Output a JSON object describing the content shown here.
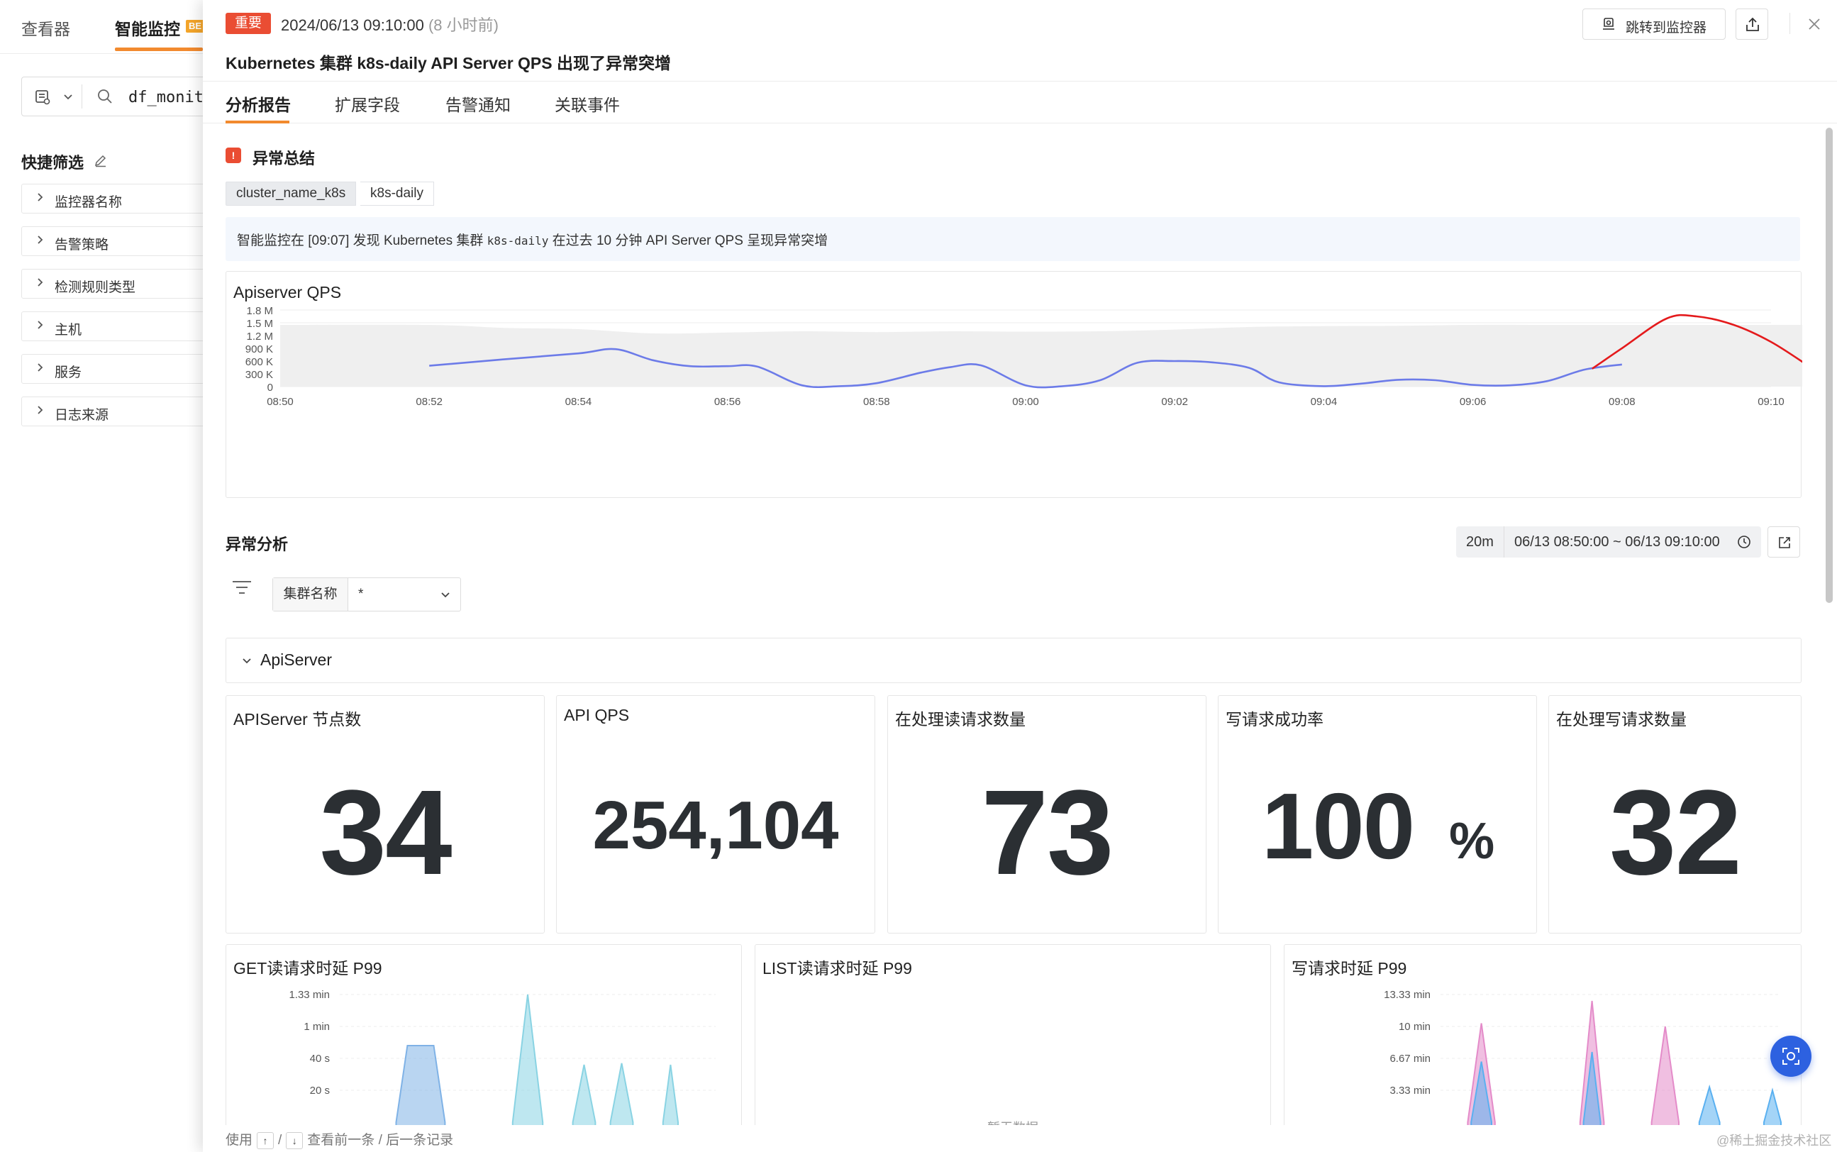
{
  "left_app": {
    "tabs": [
      "查看器",
      "智能监控"
    ],
    "beta_badge": "BE",
    "search_value": "df_monit",
    "quick_filter_title": "快捷筛选",
    "filters": [
      "监控器名称",
      "告警策略",
      "检测规则类型",
      "主机",
      "服务",
      "日志来源"
    ]
  },
  "header": {
    "severity": "重要",
    "time": "2024/06/13 09:10:00",
    "relative": "(8 小时前)",
    "title": "Kubernetes 集群 k8s-daily API Server QPS 出现了异常突增",
    "jump_label": "跳转到监控器",
    "severity_color": "#ea4d33"
  },
  "tabs": [
    "分析报告",
    "扩展字段",
    "告警通知",
    "关联事件"
  ],
  "summary": {
    "title": "异常总结",
    "tag_key": "cluster_name_k8s",
    "tag_value": "k8s-daily",
    "text_before": "智能监控在 [09:07] 发现 Kubernetes 集群 ",
    "text_code": "k8s-daily",
    "text_after": " 在过去 10 分钟 API Server QPS 呈现异常突增"
  },
  "chart_data": [
    {
      "type": "line",
      "title": "Apiserver QPS",
      "ytick_labels": [
        "0",
        "300 K",
        "600 K",
        "900 K",
        "1.2 M",
        "1.5 M",
        "1.8 M"
      ],
      "yticks": [
        0,
        300000,
        600000,
        900000,
        1200000,
        1500000,
        1800000
      ],
      "xtick_labels": [
        "08:50",
        "08:52",
        "08:54",
        "08:56",
        "08:58",
        "09:00",
        "09:02",
        "09:04",
        "09:06",
        "09:08",
        "09:10"
      ],
      "ylim": [
        0,
        1800000
      ],
      "xlim": [
        0,
        20
      ],
      "series": [
        {
          "color": "#6c7be8",
          "points": [
            [
              2,
              490000
            ],
            [
              3,
              640000
            ],
            [
              4,
              780000
            ],
            [
              4.5,
              880000
            ],
            [
              5,
              620000
            ],
            [
              5.5,
              480000
            ],
            [
              6,
              480000
            ],
            [
              6.4,
              470000
            ],
            [
              7,
              30000
            ],
            [
              7.5,
              10000
            ],
            [
              8,
              80000
            ],
            [
              8.6,
              330000
            ],
            [
              9,
              460000
            ],
            [
              9.4,
              500000
            ],
            [
              10,
              30000
            ],
            [
              10.5,
              10000
            ],
            [
              11,
              150000
            ],
            [
              11.5,
              560000
            ],
            [
              12,
              600000
            ],
            [
              12.5,
              570000
            ],
            [
              13,
              440000
            ],
            [
              13.4,
              100000
            ],
            [
              14,
              10000
            ],
            [
              14.5,
              70000
            ],
            [
              15,
              160000
            ],
            [
              15.5,
              150000
            ],
            [
              16,
              40000
            ],
            [
              16.5,
              30000
            ],
            [
              17,
              130000
            ],
            [
              17.5,
              400000
            ],
            [
              18,
              520000
            ]
          ]
        },
        {
          "color": "#e41a1c",
          "points": [
            [
              17.6,
              420000
            ],
            [
              18,
              900000
            ],
            [
              18.6,
              1600000
            ],
            [
              19,
              1650000
            ],
            [
              19.5,
              1450000
            ],
            [
              20,
              1050000
            ],
            [
              20.5,
              490000
            ]
          ]
        }
      ],
      "band": {
        "color": "#efefef",
        "upper": [
          [
            0,
            1450000
          ],
          [
            2,
            1450000
          ],
          [
            3,
            1380000
          ],
          [
            4,
            1350000
          ],
          [
            5,
            1250000
          ],
          [
            6,
            1270000
          ],
          [
            7,
            1300000
          ],
          [
            8,
            1280000
          ],
          [
            9,
            1300000
          ],
          [
            10,
            1290000
          ],
          [
            11,
            1300000
          ],
          [
            12,
            1340000
          ],
          [
            13,
            1400000
          ],
          [
            14,
            1420000
          ],
          [
            15,
            1430000
          ],
          [
            16,
            1450000
          ],
          [
            17,
            1450000
          ],
          [
            18,
            1450000
          ],
          [
            19,
            1450000
          ],
          [
            20.5,
            1450000
          ]
        ],
        "lower": [
          [
            0,
            0
          ],
          [
            20.5,
            0
          ]
        ]
      }
    },
    {
      "type": "area",
      "title": "GET读请求时延 P99",
      "ytick_labels": [
        "20 s",
        "40 s",
        "1 min",
        "1.33 min"
      ],
      "yticks": [
        20,
        40,
        60,
        80
      ],
      "ylim": [
        0,
        80
      ],
      "series": [
        {
          "color": "#7fb2e6",
          "points": [
            [
              0.15,
              0
            ],
            [
              0.18,
              48
            ],
            [
              0.25,
              48
            ],
            [
              0.28,
              0
            ]
          ]
        },
        {
          "color": "#89d3e3",
          "points": [
            [
              0.46,
              0
            ],
            [
              0.5,
              80
            ],
            [
              0.54,
              0
            ]
          ]
        },
        {
          "color": "#89d3e3",
          "points": [
            [
              0.62,
              0
            ],
            [
              0.65,
              36
            ],
            [
              0.68,
              0
            ]
          ]
        },
        {
          "color": "#89d3e3",
          "points": [
            [
              0.72,
              0
            ],
            [
              0.75,
              37
            ],
            [
              0.78,
              0
            ]
          ]
        },
        {
          "color": "#89d3e3",
          "points": [
            [
              0.86,
              0
            ],
            [
              0.88,
              36
            ],
            [
              0.9,
              0
            ]
          ]
        }
      ]
    },
    {
      "type": "area",
      "title": "LIST读请求时延 P99",
      "series": [],
      "no_data": "暂无数据"
    },
    {
      "type": "area",
      "title": "写请求时延 P99",
      "ytick_labels": [
        "3.33 min",
        "6.67 min",
        "10 min",
        "13.33 min"
      ],
      "yticks": [
        200,
        400,
        600,
        800
      ],
      "ylim": [
        0,
        800
      ],
      "series": [
        {
          "color": "#e48bc9",
          "points": [
            [
              0.08,
              0
            ],
            [
              0.12,
              620
            ],
            [
              0.16,
              0
            ]
          ]
        },
        {
          "color": "#5ab0f0",
          "points": [
            [
              0.09,
              0
            ],
            [
              0.12,
              380
            ],
            [
              0.15,
              0
            ]
          ]
        },
        {
          "color": "#e48bc9",
          "points": [
            [
              0.41,
              0
            ],
            [
              0.445,
              760
            ],
            [
              0.48,
              0
            ]
          ]
        },
        {
          "color": "#5ab0f0",
          "points": [
            [
              0.42,
              0
            ],
            [
              0.445,
              440
            ],
            [
              0.47,
              0
            ]
          ]
        },
        {
          "color": "#e48bc9",
          "points": [
            [
              0.62,
              0
            ],
            [
              0.66,
              600
            ],
            [
              0.7,
              0
            ]
          ]
        },
        {
          "color": "#5ab0f0",
          "points": [
            [
              0.76,
              0
            ],
            [
              0.79,
              220
            ],
            [
              0.82,
              0
            ]
          ]
        },
        {
          "color": "#5ab0f0",
          "points": [
            [
              0.95,
              0
            ],
            [
              0.975,
              200
            ],
            [
              1.0,
              0
            ]
          ]
        }
      ]
    }
  ],
  "analysis": {
    "title": "异常分析",
    "range_preset": "20m",
    "range_text": "06/13 08:50:00 ~ 06/13 09:10:00",
    "cluster_label": "集群名称",
    "cluster_value": "*",
    "group_title": "ApiServer"
  },
  "stats": [
    {
      "title": "APIServer 节点数",
      "value": "34",
      "unit": ""
    },
    {
      "title": "API QPS",
      "value": "254,104",
      "unit": ""
    },
    {
      "title": "在处理读请求数量",
      "value": "73",
      "unit": ""
    },
    {
      "title": "写请求成功率",
      "value": "100",
      "unit": "%"
    },
    {
      "title": "在处理写请求数量",
      "value": "32",
      "unit": ""
    }
  ],
  "footer": {
    "use": "使用",
    "up": "↑",
    "slash": "/",
    "down": "↓",
    "hint": "查看前一条 / 后一条记录"
  },
  "watermark": "@稀土掘金技术社区"
}
